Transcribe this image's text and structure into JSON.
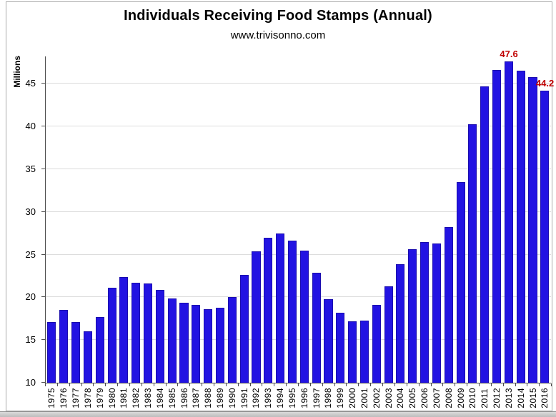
{
  "chart_data": {
    "type": "bar",
    "title": "Individuals Receiving Food Stamps (Annual)",
    "subtitle": "www.trivisonno.com",
    "ylabel": "Millions",
    "xlabel": "",
    "categories": [
      "1975",
      "1976",
      "1977",
      "1978",
      "1979",
      "1980",
      "1981",
      "1982",
      "1983",
      "1984",
      "1985",
      "1986",
      "1987",
      "1988",
      "1989",
      "1990",
      "1991",
      "1992",
      "1993",
      "1994",
      "1995",
      "1996",
      "1997",
      "1998",
      "1999",
      "2000",
      "2001",
      "2002",
      "2003",
      "2004",
      "2005",
      "2006",
      "2007",
      "2008",
      "2009",
      "2010",
      "2011",
      "2012",
      "2013",
      "2014",
      "2015",
      "2016"
    ],
    "values": [
      17.1,
      18.5,
      17.1,
      16.0,
      17.7,
      21.1,
      22.4,
      21.7,
      21.6,
      20.9,
      19.9,
      19.4,
      19.1,
      18.6,
      18.8,
      20.0,
      22.6,
      25.4,
      27.0,
      27.5,
      26.6,
      25.5,
      22.9,
      19.8,
      18.2,
      17.2,
      17.3,
      19.1,
      21.3,
      23.9,
      25.6,
      26.5,
      26.3,
      28.2,
      33.5,
      40.3,
      44.7,
      46.6,
      47.6,
      46.5,
      45.8,
      44.2
    ],
    "ylim": [
      10,
      48.2
    ],
    "yticks": [
      10,
      15,
      20,
      25,
      30,
      35,
      40,
      45
    ],
    "grid": true,
    "legend": "none",
    "bar_color": "#2213E2",
    "bar_border_color": "#1A0CAE",
    "annotations": [
      {
        "category": "2013",
        "text": "47.6",
        "color": "#C00000"
      },
      {
        "category": "2016",
        "text": "44.2",
        "color": "#C00000"
      }
    ]
  }
}
